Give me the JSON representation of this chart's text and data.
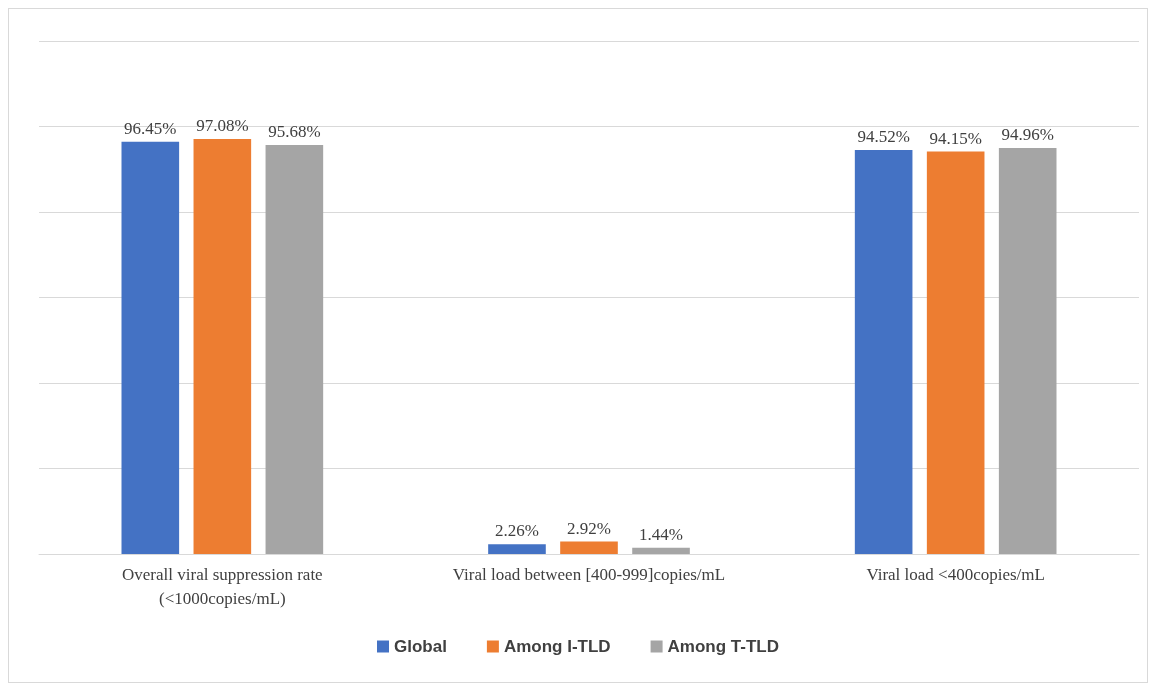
{
  "chart_data": {
    "type": "bar",
    "categories": [
      "Overall viral suppression rate\n(<1000copies/mL)",
      "Viral load between [400-999]copies/mL",
      "Viral load <400copies/mL"
    ],
    "series": [
      {
        "name": "Global",
        "color": "#4472c4",
        "values": [
          96.45,
          2.26,
          94.52
        ],
        "value_labels": [
          "96.45%",
          "2.26%",
          "94.52%"
        ]
      },
      {
        "name": "Among I-TLD",
        "color": "#ed7d31",
        "values": [
          97.08,
          2.92,
          94.15
        ],
        "value_labels": [
          "97.08%",
          "2.92%",
          "94.15%"
        ]
      },
      {
        "name": "Among T-TLD",
        "color": "#a5a5a5",
        "values": [
          95.68,
          1.44,
          94.96
        ],
        "value_labels": [
          "95.68%",
          "1.44%",
          "94.96%"
        ]
      }
    ],
    "ylim": [
      0,
      120
    ],
    "yticks": [
      {
        "value": 0,
        "label": null
      },
      {
        "value": 20,
        "label": null
      },
      {
        "value": 40,
        "label": null
      },
      {
        "value": 60,
        "label": null
      },
      {
        "value": 80,
        "label": null
      },
      {
        "value": 100,
        "label": null
      },
      {
        "value": 120,
        "label": null
      }
    ],
    "tick_labels": "x",
    "grid": "y",
    "legend": "bottom"
  }
}
